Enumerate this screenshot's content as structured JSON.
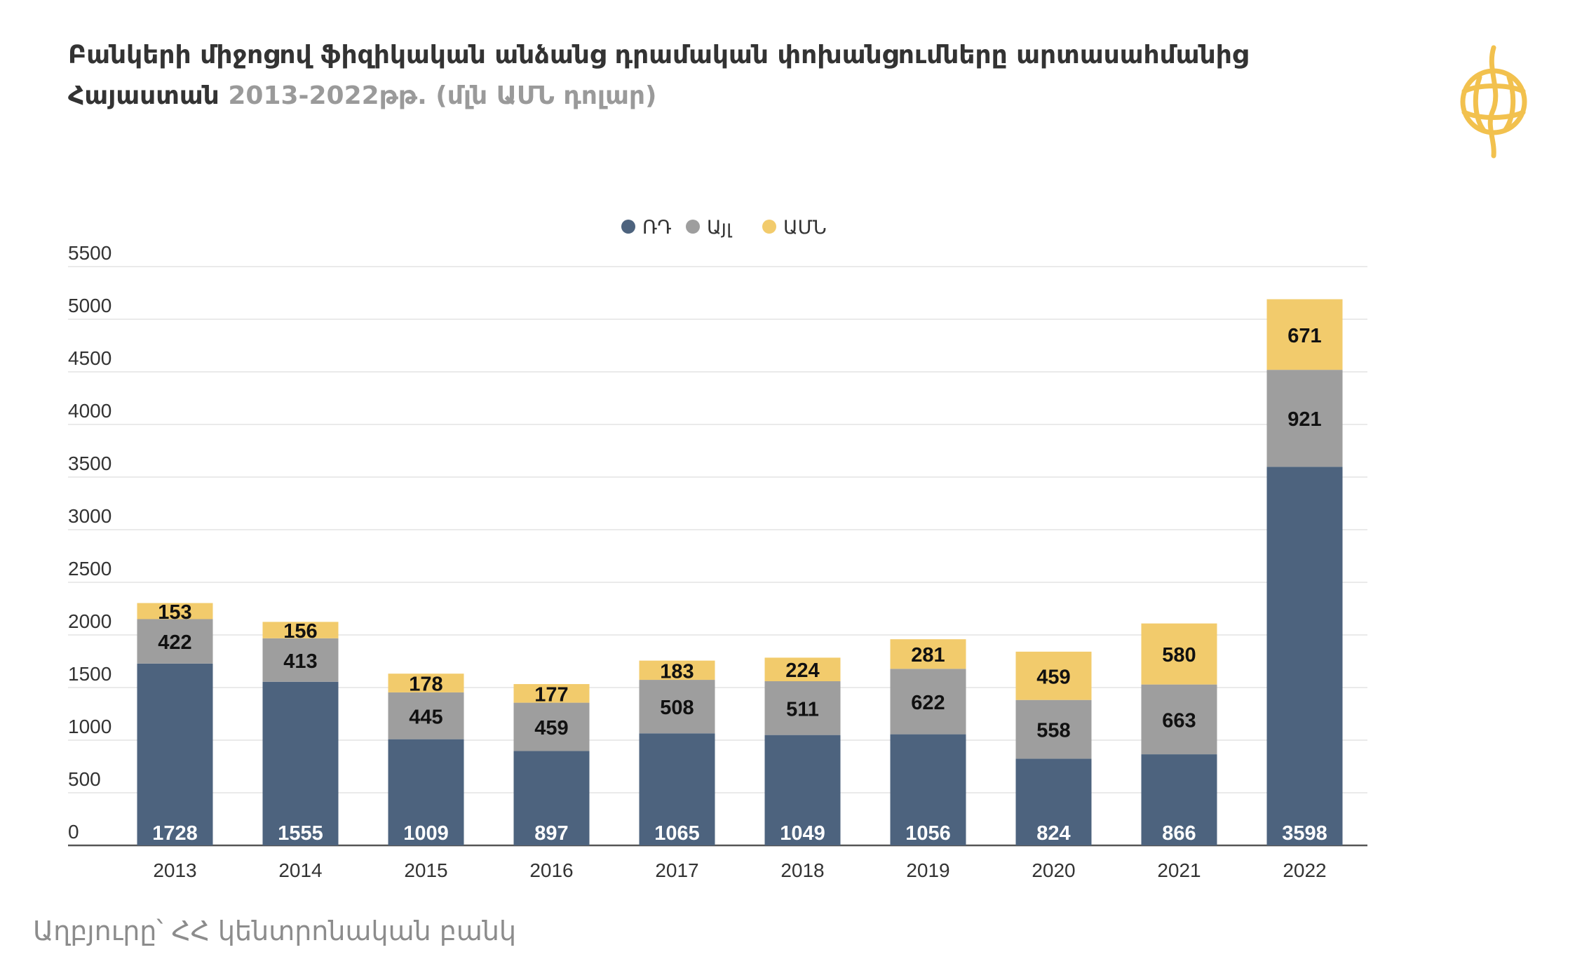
{
  "header": {
    "title_line1": "Բանկերի միջոցով ֆիզիկական անձանց դրամական փոխանցումները արտասահմանից",
    "title_line2_main": "Հայաստան",
    "title_line2_sub": "2013-2022թթ. (մլն ԱՄՆ դոլար)"
  },
  "logo": {
    "icon": "globe-logo-icon",
    "color": "#f2c14e"
  },
  "footer": {
    "source": "Աղբյուրը՝ ՀՀ կենտրոնական բանկ"
  },
  "chart_data": {
    "type": "bar",
    "stacked": true,
    "title": "Բանկերի միջոցով ֆիզիկական անձանց դրամական փոխանցումները արտասահմանից Հայաստան 2013-2022թթ. (մլն ԱՄՆ դոլար)",
    "xlabel": "",
    "ylabel": "",
    "ylim": [
      0,
      5500
    ],
    "yticks": [
      0,
      500,
      1000,
      1500,
      2000,
      2500,
      3000,
      3500,
      4000,
      4500,
      5000,
      5500
    ],
    "grid": true,
    "legend_position": "top-center",
    "categories": [
      "2013",
      "2014",
      "2015",
      "2016",
      "2017",
      "2018",
      "2019",
      "2020",
      "2021",
      "2022"
    ],
    "series": [
      {
        "name": "ՌԴ",
        "color": "#4d637e",
        "label_color": "#ffffff",
        "values": [
          1728,
          1555,
          1009,
          897,
          1065,
          1049,
          1056,
          824,
          866,
          3598
        ]
      },
      {
        "name": "Այլ",
        "color": "#9e9e9e",
        "label_color": "#111111",
        "values": [
          422,
          413,
          445,
          459,
          508,
          511,
          622,
          558,
          663,
          921
        ]
      },
      {
        "name": "ԱՄՆ",
        "color": "#f2cb6c",
        "label_color": "#111111",
        "values": [
          153,
          156,
          178,
          177,
          183,
          224,
          281,
          459,
          580,
          671
        ]
      }
    ]
  }
}
